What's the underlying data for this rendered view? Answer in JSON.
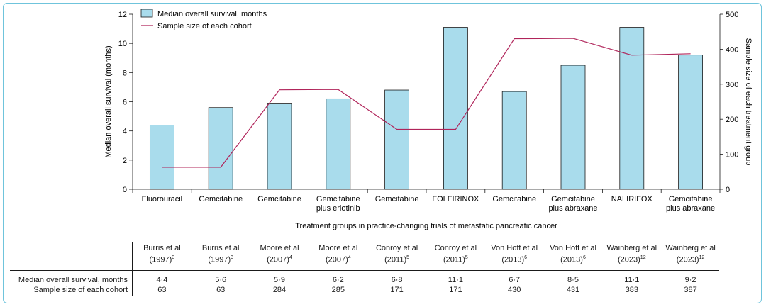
{
  "chart_data": {
    "type": "bar",
    "categories": [
      "Fluorouracil",
      "Gemcitabine",
      "Gemcitabine",
      "Gemcitabine plus erlotinib",
      "Gemcitabine",
      "FOLFIRINOX",
      "Gemcitabine",
      "Gemcitabine plus abraxane",
      "NALIRIFOX",
      "Gemcitabine plus abraxane"
    ],
    "category_lines": [
      [
        "Fluorouracil"
      ],
      [
        "Gemcitabine"
      ],
      [
        "Gemcitabine"
      ],
      [
        "Gemcitabine",
        "plus erlotinib"
      ],
      [
        "Gemcitabine"
      ],
      [
        "FOLFIRINOX"
      ],
      [
        "Gemcitabine"
      ],
      [
        "Gemcitabine",
        "plus abraxane"
      ],
      [
        "NALIRIFOX"
      ],
      [
        "Gemcitabine",
        "plus abraxane"
      ]
    ],
    "series": [
      {
        "name": "Median overall survival, months",
        "kind": "bar",
        "axis": "left",
        "values": [
          4.4,
          5.6,
          5.9,
          6.2,
          6.8,
          11.1,
          6.7,
          8.5,
          11.1,
          9.2
        ]
      },
      {
        "name": "Sample size of each cohort",
        "kind": "line",
        "axis": "right",
        "values": [
          63,
          63,
          284,
          285,
          171,
          171,
          430,
          431,
          383,
          387
        ]
      }
    ],
    "xlabel": "Treatment groups in practice-changing trials of metastatic pancreatic cancer",
    "ylabel": "Median overall survival (months)",
    "y2label": "Sample size of each treatment group",
    "ylim": [
      0,
      12
    ],
    "yticks": [
      "0",
      "2",
      "4",
      "6",
      "8",
      "10",
      "12"
    ],
    "y2lim": [
      0,
      500
    ],
    "y2ticks": [
      "0",
      "100",
      "200",
      "300",
      "400",
      "500"
    ],
    "legend_position": "top-left",
    "grid": false,
    "colors": {
      "bar_fill": "#a9dcec",
      "bar_stroke": "#1a1a1a",
      "line": "#b0245a",
      "frame": "#6fc4dc"
    }
  },
  "table": {
    "studies": [
      {
        "name": "Burris et al",
        "year": "(1997)",
        "ref": "3"
      },
      {
        "name": "Burris et al",
        "year": "(1997)",
        "ref": "3"
      },
      {
        "name": "Moore et al",
        "year": "(2007)",
        "ref": "4"
      },
      {
        "name": "Moore et al",
        "year": "(2007)",
        "ref": "4"
      },
      {
        "name": "Conroy et al",
        "year": "(2011)",
        "ref": "5"
      },
      {
        "name": "Conroy et al",
        "year": "(2011)",
        "ref": "5"
      },
      {
        "name": "Von Hoff et al",
        "year": "(2013)",
        "ref": "6"
      },
      {
        "name": "Von Hoff et al",
        "year": "(2013)",
        "ref": "6"
      },
      {
        "name": "Wainberg et al",
        "year": "(2023)",
        "ref": "12"
      },
      {
        "name": "Wainberg et al",
        "year": "(2023)",
        "ref": "12"
      }
    ],
    "rows": [
      {
        "label": "Median overall survival, months",
        "values": [
          "4·4",
          "5·6",
          "5·9",
          "6·2",
          "6·8",
          "11·1",
          "6·7",
          "8·5",
          "11·1",
          "9·2"
        ]
      },
      {
        "label": "Sample size of each cohort",
        "values": [
          "63",
          "63",
          "284",
          "285",
          "171",
          "171",
          "430",
          "431",
          "383",
          "387"
        ]
      }
    ]
  }
}
